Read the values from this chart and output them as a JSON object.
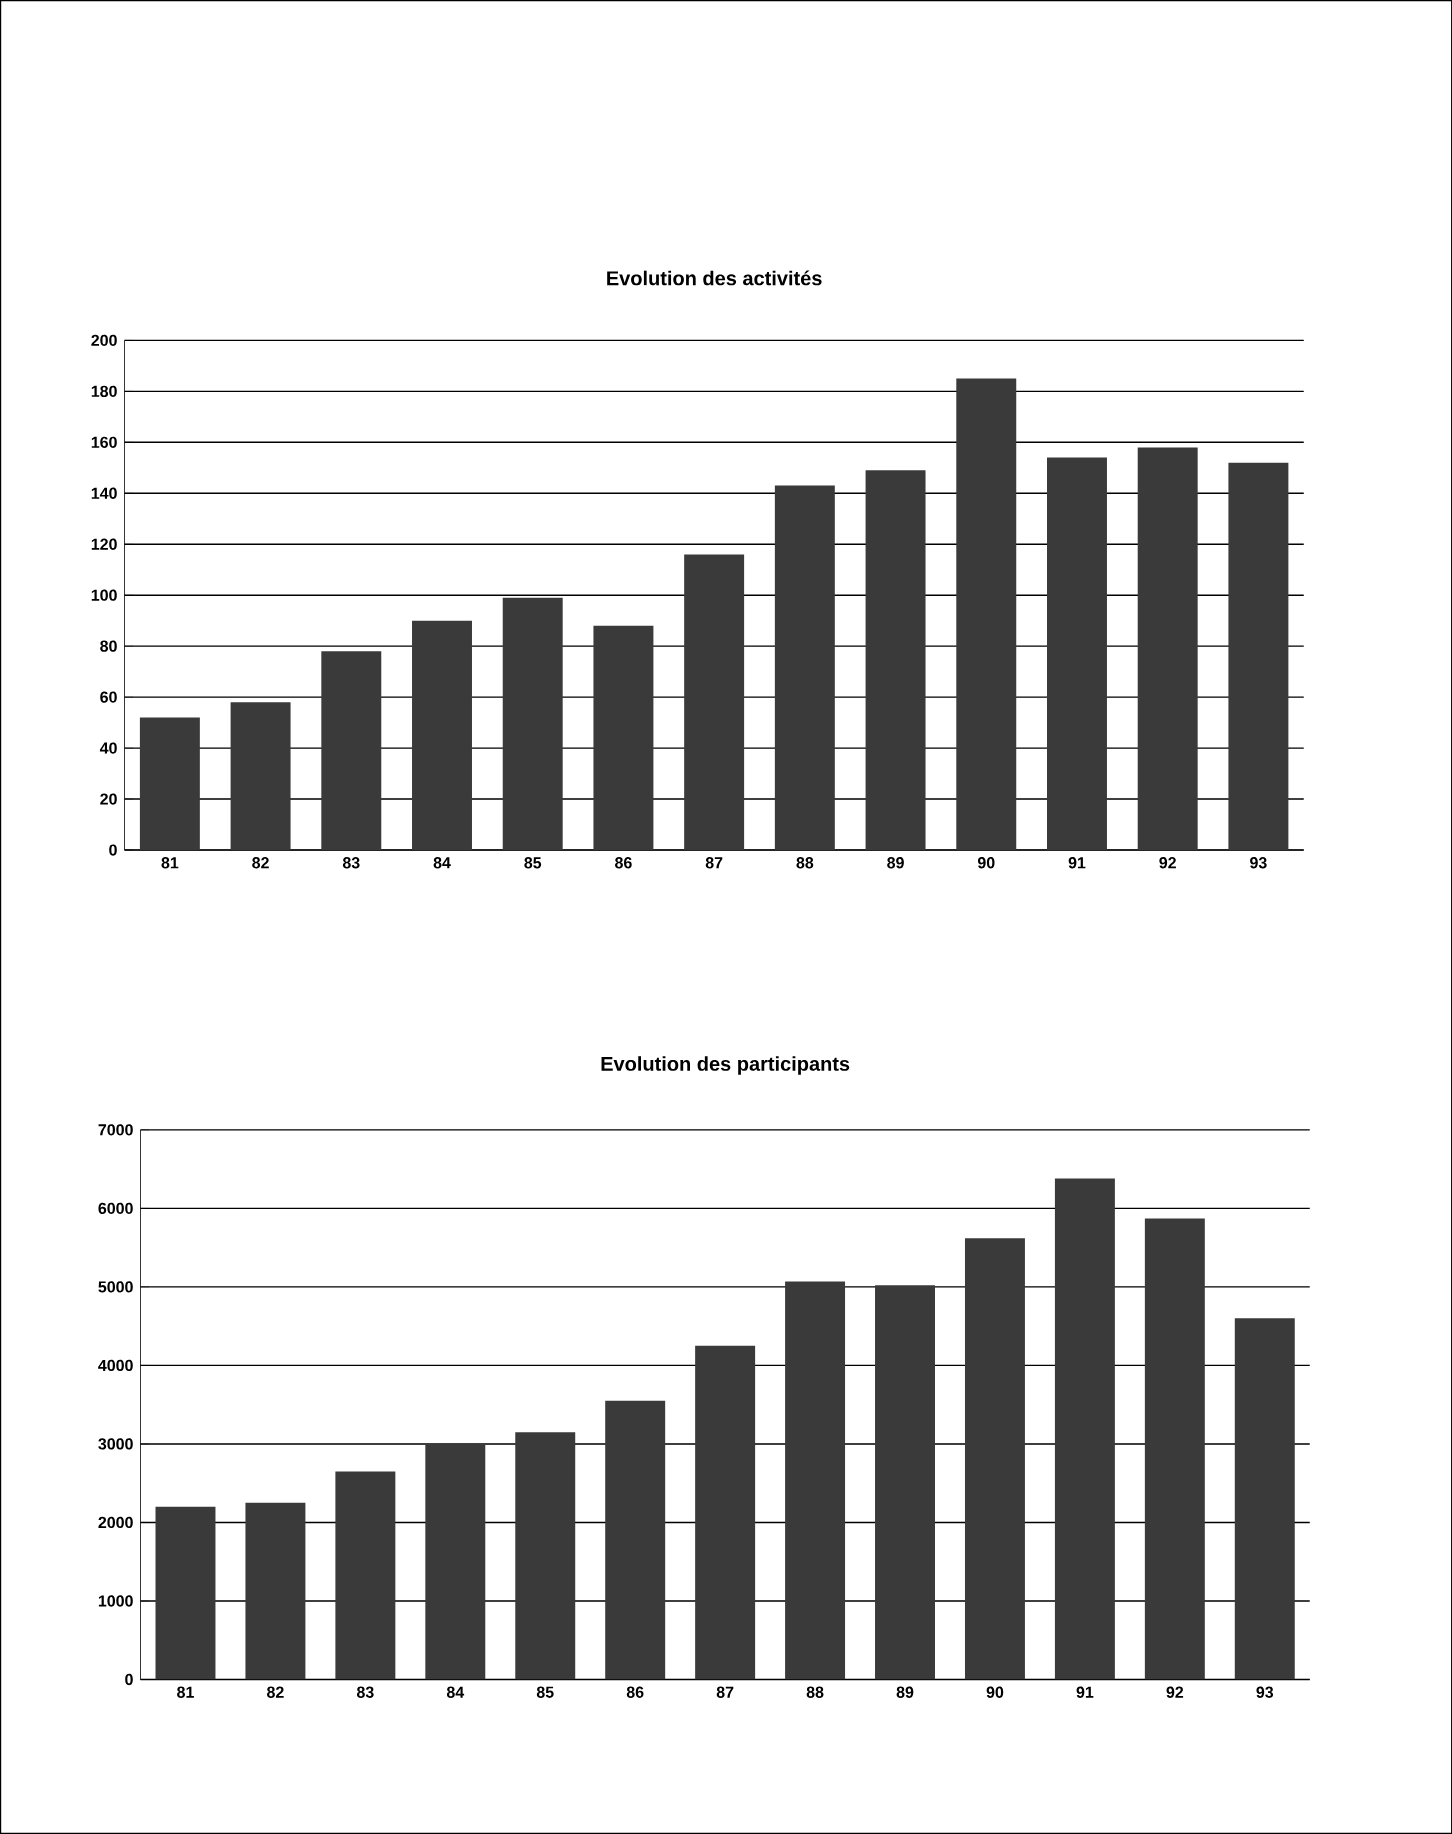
{
  "chart_data": [
    {
      "type": "bar",
      "title": "Evolution des activités",
      "categories": [
        "81",
        "82",
        "83",
        "84",
        "85",
        "86",
        "87",
        "88",
        "89",
        "90",
        "91",
        "92",
        "93"
      ],
      "values": [
        52,
        58,
        78,
        90,
        99,
        88,
        116,
        143,
        149,
        185,
        154,
        158,
        152
      ],
      "color": "#3a3a3a",
      "ylim": [
        0,
        200
      ],
      "yticks": [
        0,
        20,
        40,
        60,
        80,
        100,
        120,
        140,
        160,
        180,
        200
      ],
      "grid": "y"
    },
    {
      "type": "bar",
      "title": "Evolution des participants",
      "categories": [
        "81",
        "82",
        "83",
        "84",
        "85",
        "86",
        "87",
        "88",
        "89",
        "90",
        "91",
        "92",
        "93"
      ],
      "values": [
        2200,
        2250,
        2650,
        3000,
        3150,
        3550,
        4250,
        5070,
        5020,
        5620,
        6380,
        5870,
        4600
      ],
      "color": "#3a3a3a",
      "ylim": [
        0,
        7000
      ],
      "yticks": [
        0,
        1000,
        2000,
        3000,
        4000,
        5000,
        6000,
        7000
      ],
      "grid": "y"
    }
  ]
}
